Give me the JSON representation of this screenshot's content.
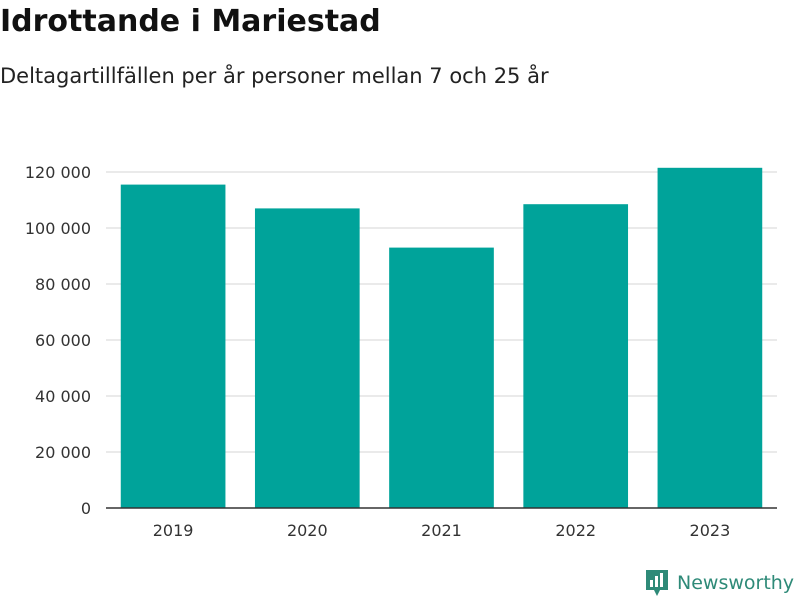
{
  "title": "Idrottande i Mariestad",
  "subtitle": "Deltagartillfällen per år personer mellan 7 och 25 år",
  "brand": {
    "name": "Newsworthy",
    "color": "#2e8a78",
    "icon": "bar-chart-badge-icon"
  },
  "colors": {
    "bar": "#00a39a",
    "grid": "#dddddd",
    "axis": "#333333"
  },
  "chart_data": {
    "type": "bar",
    "title": "Idrottande i Mariestad",
    "subtitle": "Deltagartillfällen per år personer mellan 7 och 25 år",
    "xlabel": "",
    "ylabel": "",
    "categories": [
      "2019",
      "2020",
      "2021",
      "2022",
      "2023"
    ],
    "values": [
      115500,
      107000,
      93000,
      108500,
      121500
    ],
    "ylim": [
      0,
      120000
    ],
    "yticks": [
      0,
      20000,
      40000,
      60000,
      80000,
      100000,
      120000
    ],
    "ytick_labels": [
      "0",
      "20 000",
      "40 000",
      "60 000",
      "80 000",
      "100 000",
      "120 000"
    ],
    "grid": true,
    "legend": "none"
  }
}
